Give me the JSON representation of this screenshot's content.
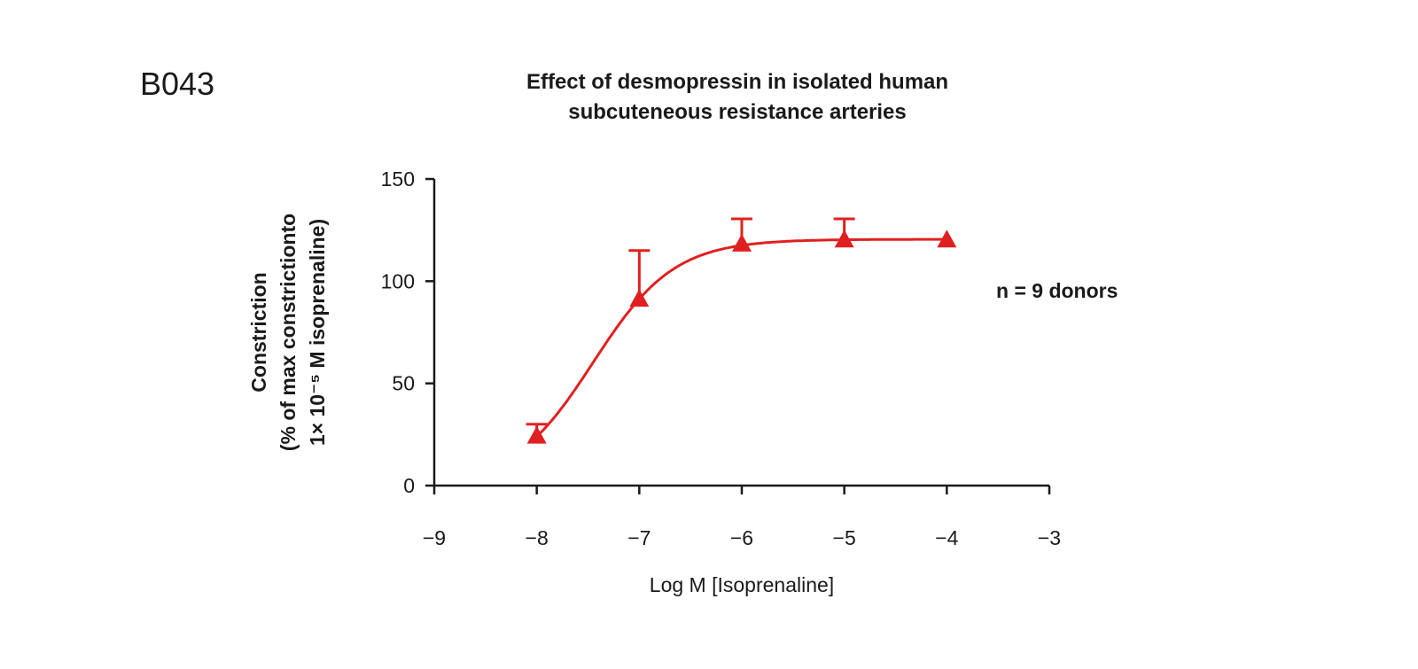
{
  "panel_code": "B043",
  "chart_data": {
    "type": "line",
    "title": "Effect of desmopressin in isolated human subcuteneous resistance arteries",
    "title_lines": [
      "Effect of desmopressin in isolated human",
      "subcuteneous resistance arteries"
    ],
    "xlabel": "Log M [Isoprenaline]",
    "ylabel_lines": [
      "Constriction",
      "(% of max constrictionto",
      "1× 10⁻⁵ M isoprenaline)"
    ],
    "xlim": [
      -9,
      -3
    ],
    "ylim": [
      0,
      150
    ],
    "xticks": [
      -9,
      -8,
      -7,
      -6,
      -5,
      -4,
      -3
    ],
    "xtick_labels": [
      "−9",
      "−8",
      "−7",
      "−6",
      "−5",
      "−4",
      "−3"
    ],
    "yticks": [
      0,
      50,
      100,
      150
    ],
    "ytick_labels": [
      "0",
      "50",
      "100",
      "150"
    ],
    "grid": false,
    "annotation": "n = 9 donors",
    "series": [
      {
        "x": [
          -8,
          -7,
          -6,
          -5,
          -4
        ],
        "y": [
          24,
          91,
          118,
          120,
          120
        ],
        "error_upper": [
          30,
          115,
          130.5,
          130.5,
          null
        ],
        "marker": "triangle",
        "color": "#e02020",
        "fit": "sigmoidal curve"
      }
    ]
  }
}
